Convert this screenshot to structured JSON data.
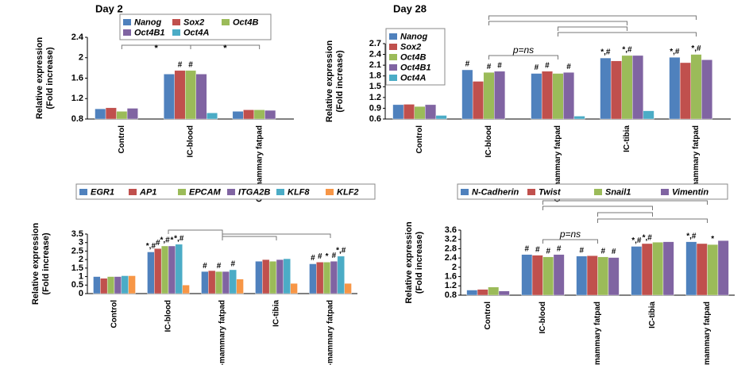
{
  "chart_data": [
    {
      "type": "bar",
      "title": "Day 2",
      "ylabel": [
        "Relative expression",
        "(Fold increase)"
      ],
      "categories": [
        "Control",
        "IC-blood",
        "OT-mammary fatpad"
      ],
      "ylim": [
        0.8,
        2.4
      ],
      "yticks": [
        0.8,
        1.2,
        1.6,
        2,
        2.4
      ],
      "annotations": [
        "*",
        "*"
      ],
      "series": [
        {
          "name": "Nanog",
          "color": "#4f81bd",
          "values": [
            1.0,
            1.68,
            0.95
          ],
          "marks": [
            null,
            null,
            null
          ]
        },
        {
          "name": "Sox2",
          "color": "#c0504d",
          "values": [
            1.02,
            1.75,
            0.98
          ],
          "marks": [
            null,
            "#",
            null
          ]
        },
        {
          "name": "Oct4B",
          "color": "#9bbb59",
          "values": [
            0.95,
            1.75,
            0.98
          ],
          "marks": [
            null,
            "#",
            null
          ]
        },
        {
          "name": "Oct4B1",
          "color": "#8064a2",
          "values": [
            1.01,
            1.68,
            0.97
          ],
          "marks": [
            null,
            null,
            null
          ]
        },
        {
          "name": "Oct4A",
          "color": "#4bacc6",
          "values": [
            null,
            0.92,
            null
          ],
          "marks": [
            null,
            null,
            null
          ]
        }
      ]
    },
    {
      "type": "bar",
      "title": "Day 28",
      "ylabel": [
        "Relative expression",
        "(Fold increase)"
      ],
      "categories": [
        "Control",
        "IC-blood",
        "OT-mammary fatpad",
        "IC-tibia",
        "IC-mammary fatpad"
      ],
      "ylim": [
        0.6,
        2.7
      ],
      "yticks": [
        0.6,
        0.9,
        1.2,
        1.5,
        1.8,
        2.1,
        2.4,
        2.7
      ],
      "annotations": [
        "p=ns"
      ],
      "series": [
        {
          "name": "Nanog",
          "color": "#4f81bd",
          "values": [
            1.0,
            1.97,
            1.87,
            2.3,
            2.32
          ],
          "marks": [
            null,
            "#",
            "#",
            "*,#",
            "*,#"
          ]
        },
        {
          "name": "Sox2",
          "color": "#c0504d",
          "values": [
            1.01,
            1.65,
            1.93,
            2.22,
            2.17
          ],
          "marks": [
            null,
            null,
            "#",
            null,
            null
          ]
        },
        {
          "name": "Oct4B",
          "color": "#9bbb59",
          "values": [
            0.95,
            1.9,
            1.87,
            2.37,
            2.4
          ],
          "marks": [
            null,
            "#",
            null,
            "*,#",
            "*,#"
          ]
        },
        {
          "name": "Oct4B1",
          "color": "#8064a2",
          "values": [
            1.0,
            1.93,
            1.9,
            2.37,
            2.25
          ],
          "marks": [
            null,
            "#",
            "#",
            null,
            null
          ]
        },
        {
          "name": "Oct4A",
          "color": "#4bacc6",
          "values": [
            0.7,
            null,
            0.68,
            0.83,
            null
          ],
          "marks": [
            null,
            null,
            null,
            null,
            null
          ]
        }
      ]
    },
    {
      "type": "bar",
      "ylabel": [
        "Relative expression",
        "(Fold increase)"
      ],
      "categories": [
        "Control",
        "IC-blood",
        "OT-mammary fatpad",
        "IC-tibia",
        "IC-mammary fatpad"
      ],
      "ylim": [
        0,
        3.5
      ],
      "yticks": [
        0,
        0.5,
        1,
        1.5,
        2,
        2.5,
        3,
        3.5
      ],
      "series": [
        {
          "name": "EGR1",
          "color": "#4f81bd",
          "values": [
            1.0,
            2.45,
            1.3,
            1.9,
            1.75
          ],
          "marks": [
            null,
            "*,#",
            "#",
            null,
            "#"
          ]
        },
        {
          "name": "AP1",
          "color": "#c0504d",
          "values": [
            0.9,
            2.65,
            1.35,
            2.0,
            1.85
          ],
          "marks": [
            null,
            "#",
            null,
            null,
            "#"
          ]
        },
        {
          "name": "EPCAM",
          "color": "#9bbb59",
          "values": [
            1.0,
            2.8,
            1.3,
            1.9,
            1.85
          ],
          "marks": [
            null,
            "*,#",
            "#",
            null,
            "*"
          ]
        },
        {
          "name": "ITGA2B",
          "color": "#8064a2",
          "values": [
            1.0,
            2.8,
            1.3,
            2.0,
            1.9
          ],
          "marks": [
            null,
            "*",
            null,
            null,
            "#"
          ]
        },
        {
          "name": "KLF8",
          "color": "#4bacc6",
          "values": [
            1.05,
            2.9,
            1.4,
            2.05,
            2.2
          ],
          "marks": [
            null,
            "*,#",
            "#",
            null,
            "*,#"
          ]
        },
        {
          "name": "KLF2",
          "color": "#f79646",
          "values": [
            1.05,
            0.5,
            0.85,
            0.6,
            0.6
          ],
          "marks": [
            null,
            null,
            null,
            null,
            null
          ]
        }
      ]
    },
    {
      "type": "bar",
      "ylabel": [
        "Relative expression",
        "(Fold increase)"
      ],
      "categories": [
        "Control",
        "IC-blood",
        "OT-mammary fatpad",
        "IC-tibia",
        "IC-mammary fatpad"
      ],
      "ylim": [
        0.8,
        3.6
      ],
      "yticks": [
        0.8,
        1.2,
        1.6,
        2,
        2.4,
        2.8,
        3.2,
        3.6
      ],
      "annotations": [
        "p=ns"
      ],
      "series": [
        {
          "name": "N-Cadherin",
          "color": "#4f81bd",
          "values": [
            1.02,
            2.55,
            2.48,
            2.9,
            3.1
          ],
          "marks": [
            null,
            "#",
            "#",
            "*,#",
            "*,#"
          ]
        },
        {
          "name": "Twist",
          "color": "#c0504d",
          "values": [
            1.05,
            2.52,
            2.5,
            3.02,
            3.02
          ],
          "marks": [
            null,
            "#",
            null,
            "*,#",
            null
          ]
        },
        {
          "name": "Snail1",
          "color": "#9bbb59",
          "values": [
            1.15,
            2.45,
            2.45,
            3.08,
            2.98
          ],
          "marks": [
            null,
            "#",
            "#",
            null,
            "*"
          ]
        },
        {
          "name": "Vimentin",
          "color": "#8064a2",
          "values": [
            0.98,
            2.55,
            2.42,
            3.1,
            3.15
          ],
          "marks": [
            null,
            "#",
            "#",
            null,
            null
          ]
        }
      ]
    }
  ]
}
